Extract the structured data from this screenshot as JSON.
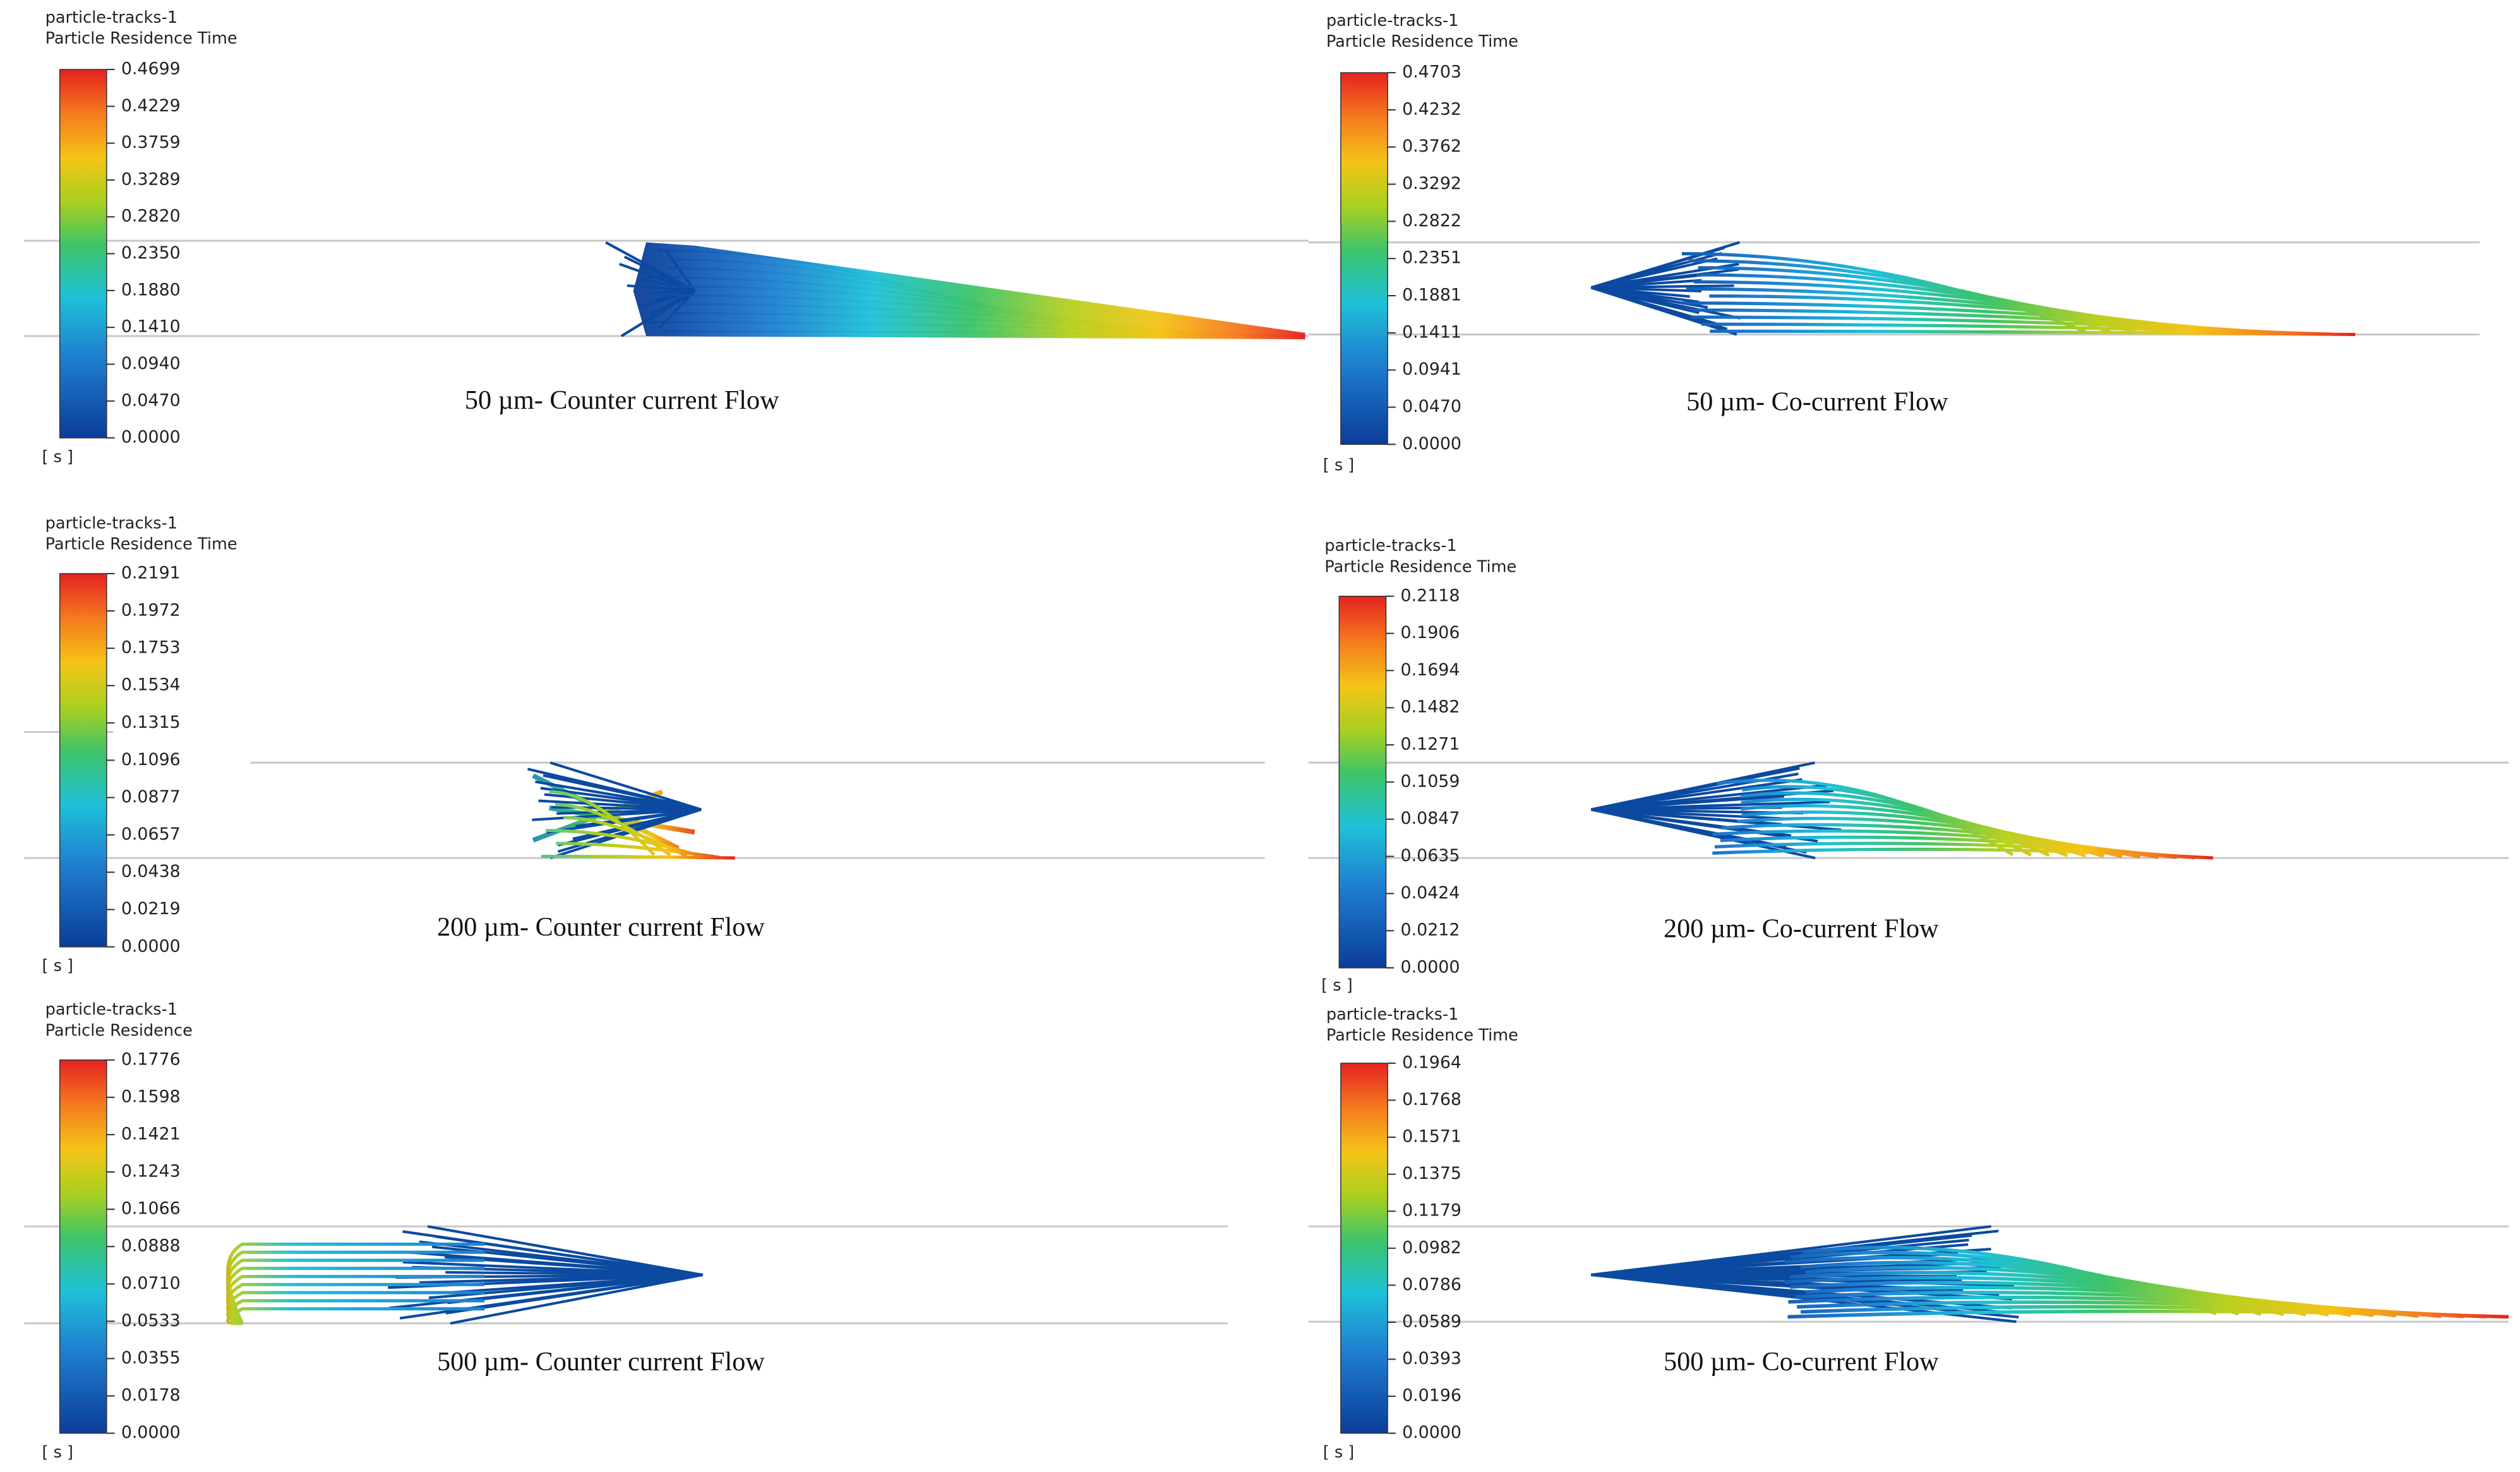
{
  "panels": [
    {
      "source": "particle-tracks-1",
      "variable": "Particle Residence Time",
      "unit": "[ s ]",
      "ticks": [
        "0.4699",
        "0.4229",
        "0.3759",
        "0.3289",
        "0.2820",
        "0.2350",
        "0.1880",
        "0.1410",
        "0.0940",
        "0.0470",
        "0.0000"
      ],
      "caption": "50 µm- Counter current Flow"
    },
    {
      "source": "particle-tracks-1",
      "variable": "Particle Residence Time",
      "unit": "[ s ]",
      "ticks": [
        "0.4703",
        "0.4232",
        "0.3762",
        "0.3292",
        "0.2822",
        "0.2351",
        "0.1881",
        "0.1411",
        "0.0941",
        "0.0470",
        "0.0000"
      ],
      "caption": "50 µm- Co-current Flow"
    },
    {
      "source": "particle-tracks-1",
      "variable": "Particle Residence Time",
      "unit": "[ s ]",
      "ticks": [
        "0.2191",
        "0.1972",
        "0.1753",
        "0.1534",
        "0.1315",
        "0.1096",
        "0.0877",
        "0.0657",
        "0.0438",
        "0.0219",
        "0.0000"
      ],
      "caption": "200 µm- Counter current Flow"
    },
    {
      "source": "particle-tracks-1",
      "variable": "Particle Residence Time",
      "unit": "[ s ]",
      "ticks": [
        "0.2118",
        "0.1906",
        "0.1694",
        "0.1482",
        "0.1271",
        "0.1059",
        "0.0847",
        "0.0635",
        "0.0424",
        "0.0212",
        "0.0000"
      ],
      "caption": "200 µm- Co-current Flow"
    },
    {
      "source": "particle-tracks-1",
      "variable": "Particle Residence",
      "unit": "[ s ]",
      "ticks": [
        "0.1776",
        "0.1598",
        "0.1421",
        "0.1243",
        "0.1066",
        "0.0888",
        "0.0710",
        "0.0533",
        "0.0355",
        "0.0178",
        "0.0000"
      ],
      "caption": "500 µm- Counter current Flow"
    },
    {
      "source": "particle-tracks-1",
      "variable": "Particle Residence Time",
      "unit": "[ s ]",
      "ticks": [
        "0.1964",
        "0.1768",
        "0.1571",
        "0.1375",
        "0.1179",
        "0.0982",
        "0.0786",
        "0.0589",
        "0.0393",
        "0.0196",
        "0.0000"
      ],
      "caption": "500 µm- Co-current Flow"
    }
  ]
}
